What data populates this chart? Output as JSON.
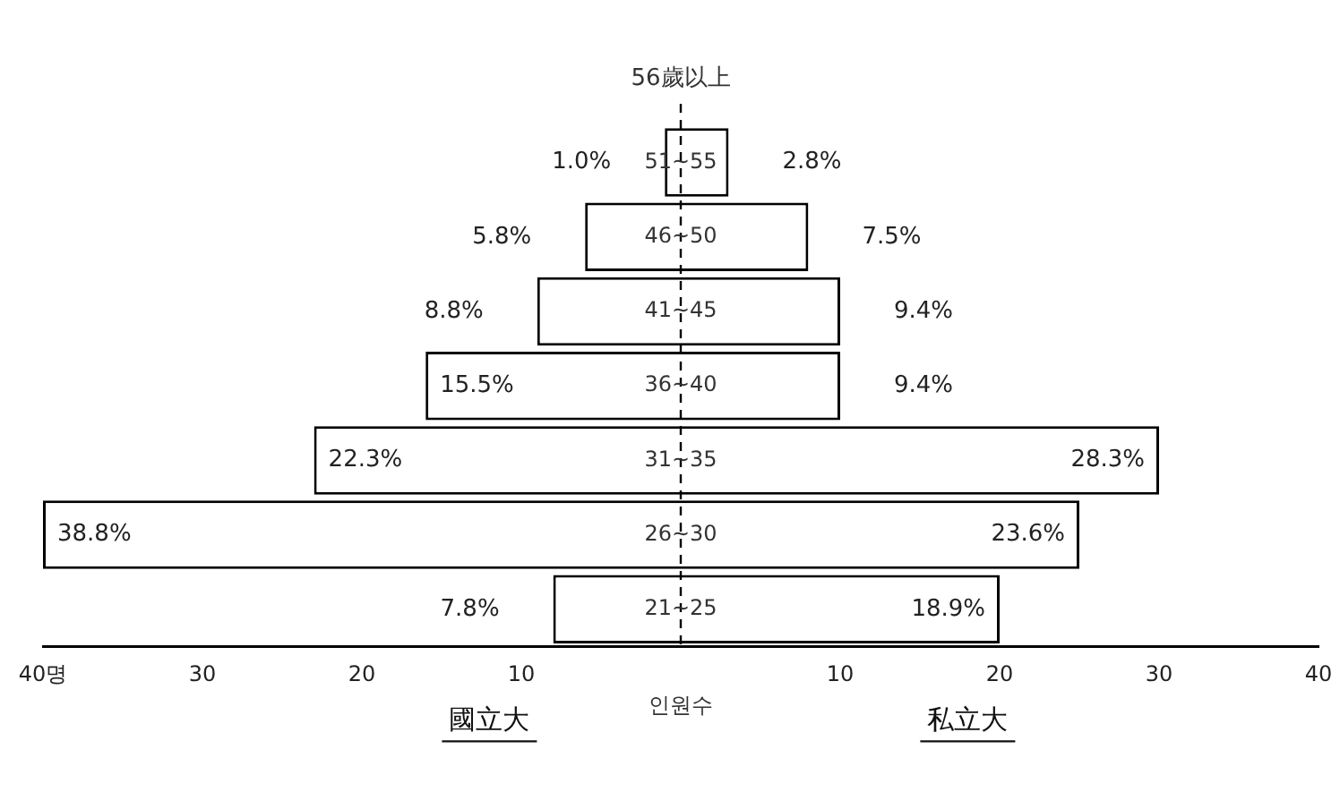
{
  "chart_data": {
    "type": "bar",
    "orientation": "horizontal",
    "stacked": true,
    "categories": [
      "51~55",
      "46~50",
      "41~45",
      "36~40",
      "31~35",
      "26~30",
      "21~25"
    ],
    "series": [
      {
        "name": "國立大",
        "color": "#ffffff",
        "values": [
          -1,
          -6,
          -9,
          -16,
          -23,
          -40,
          -8
        ]
      },
      {
        "name": "私立大",
        "color": "#ffffff",
        "values": [
          3,
          8,
          10,
          10,
          30,
          25,
          20
        ]
      }
    ],
    "xlim": [
      -40,
      40
    ],
    "xticks": [
      {
        "value": -40,
        "label": "40명"
      },
      {
        "value": -30,
        "label": "30"
      },
      {
        "value": -20,
        "label": "20"
      },
      {
        "value": -10,
        "label": "10"
      },
      {
        "value": 10,
        "label": "10"
      },
      {
        "value": 20,
        "label": "20"
      },
      {
        "value": 30,
        "label": "30"
      },
      {
        "value": 40,
        "label": "40"
      }
    ],
    "xlabel": "인원수",
    "ref_lines": [
      {
        "axis": "x",
        "value": 0,
        "line_style": "dashed"
      }
    ],
    "annotations": [
      "56歲以上",
      {
        "text": "1.0%",
        "x": -1,
        "y": "51~55"
      },
      {
        "text": "5.8%",
        "x": -6,
        "y": "46~50"
      },
      {
        "text": "8.8%",
        "x": -9,
        "y": "41~45"
      },
      {
        "text": "15.5%",
        "x": -16,
        "y": "36~40"
      },
      {
        "text": "22.3%",
        "x": -23,
        "y": "31~35"
      },
      {
        "text": "38.8%",
        "x": -40,
        "y": "26~30"
      },
      {
        "text": "7.8%",
        "x": -8,
        "y": "21~25"
      },
      {
        "text": "2.8%",
        "x": 3,
        "y": "51~55"
      },
      {
        "text": "7.5%",
        "x": 8,
        "y": "46~50"
      },
      {
        "text": "9.4%",
        "x": 10,
        "y": "41~45"
      },
      {
        "text": "9.4%",
        "x": 10,
        "y": "36~40"
      },
      {
        "text": "28.3%",
        "x": 30,
        "y": "31~35"
      },
      {
        "text": "23.6%",
        "x": 25,
        "y": "26~30"
      },
      {
        "text": "18.9%",
        "x": 20,
        "y": "21~25"
      }
    ],
    "grid": false,
    "legend": false,
    "tick_labels": "x"
  }
}
